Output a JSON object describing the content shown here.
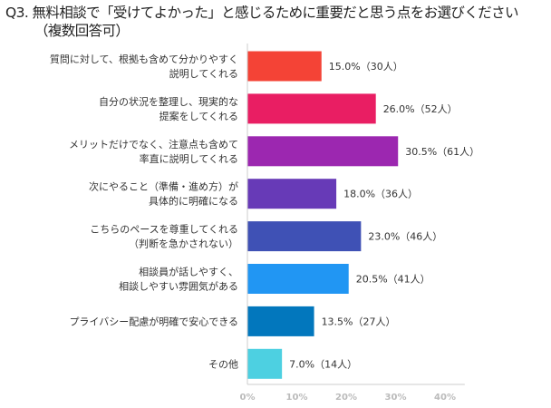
{
  "chart_data": {
    "type": "bar",
    "orientation": "horizontal",
    "title": "Q3. 無料相談で「受けてよかった」と感じるために重要だと思う点をお選びください",
    "subtitle": "（複数回答可）",
    "categories": [
      [
        "質問に対して、根拠も含めて分かりやすく",
        "説明してくれる"
      ],
      [
        "自分の状況を整理し、現実的な",
        "提案をしてくれる"
      ],
      [
        "メリットだけでなく、注意点も含めて",
        "率直に説明してくれる"
      ],
      [
        "次にやること（準備・進め方）が",
        "具体的に明確になる"
      ],
      [
        "こちらのペースを尊重してくれる",
        "（判断を急かされない）"
      ],
      [
        "相談員が話しやすく、",
        "相談しやすい雰囲気がある"
      ],
      [
        "プライバシー配慮が明確で安心できる"
      ],
      [
        "その他"
      ]
    ],
    "values": [
      15.0,
      26.0,
      30.5,
      18.0,
      23.0,
      20.5,
      13.5,
      7.0
    ],
    "data_labels": [
      "15.0%（30人）",
      "26.0%（52人）",
      "30.5%（61人）",
      "18.0%（36人）",
      "23.0%（46人）",
      "20.5%（41人）",
      "13.5%（27人）",
      "7.0%（14人）"
    ],
    "colors": [
      "#f44336",
      "#e91e63",
      "#9c27b0",
      "#673ab7",
      "#3f51b5",
      "#2196f3",
      "#0277bd",
      "#4dd0e1"
    ],
    "xlim": [
      0,
      44
    ],
    "xticks": [
      "0%",
      "10%",
      "20%",
      "30%",
      "40%"
    ],
    "xtick_values": [
      0,
      10,
      20,
      30,
      40
    ],
    "grid": false,
    "xlabel": "",
    "ylabel": ""
  }
}
